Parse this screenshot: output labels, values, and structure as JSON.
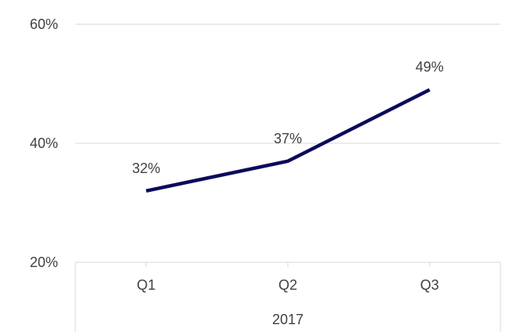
{
  "chart_data": {
    "type": "line",
    "title": "",
    "xlabel": "",
    "ylabel": "",
    "categories": [
      "Q1",
      "Q2",
      "Q3"
    ],
    "category_group": "2017",
    "series": [
      {
        "values": [
          0.32,
          0.37,
          0.49
        ],
        "labels": [
          "32%",
          "37%",
          "49%"
        ]
      }
    ],
    "ylim": [
      0.2,
      0.6
    ],
    "y_ticks": [
      0.2,
      0.4,
      0.6
    ],
    "y_tick_labels": [
      "20%",
      "40%",
      "60%"
    ],
    "grid": true,
    "legend": "none",
    "colors": {
      "line": "#0b0b5c",
      "grid": "#d9d9d9",
      "text": "#404040"
    }
  }
}
